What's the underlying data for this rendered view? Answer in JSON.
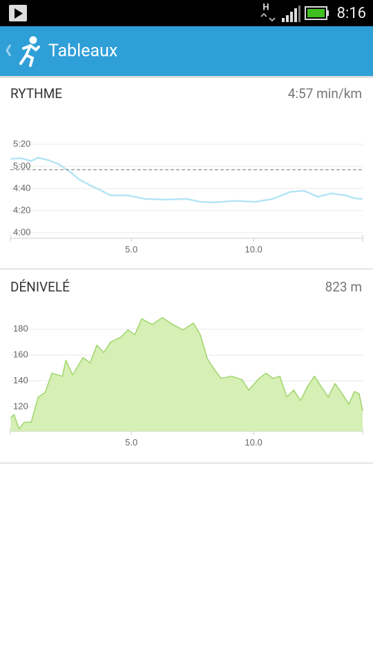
{
  "status_bar": {
    "network": "H",
    "time": "8:16"
  },
  "app_bar": {
    "title": "Tableaux"
  },
  "chart_data": [
    {
      "type": "line",
      "title": "RYTHME",
      "average": {
        "value": 297,
        "label": "4:57 min/km"
      },
      "x": [
        0.06,
        0.48,
        0.9,
        1.19,
        1.61,
        2.03,
        2.46,
        2.88,
        3.31,
        3.87,
        4.15,
        4.86,
        5.56,
        6.41,
        7.26,
        7.82,
        8.39,
        9.24,
        10.08,
        10.79,
        11.5,
        12.06,
        12.63,
        13.19,
        13.76,
        14.18,
        14.46
      ],
      "values": [
        306.9,
        307.5,
        305,
        308,
        305.6,
        302,
        295.6,
        288,
        283,
        277,
        273.8,
        273.8,
        270.6,
        270,
        270.6,
        268,
        267.5,
        268.8,
        268,
        270.6,
        277,
        278,
        272.5,
        275.6,
        273.8,
        271,
        270.6
      ],
      "color": "#b5e4f6",
      "xlim": [
        0.05,
        14.46
      ],
      "xticks": [
        {
          "value": 5,
          "label": "5.0"
        },
        {
          "value": 10,
          "label": "10.0"
        }
      ],
      "ylim": [
        235,
        320
      ],
      "yticks": [
        {
          "value": 320,
          "label": "5:20"
        },
        {
          "value": 300,
          "label": "5:00"
        },
        {
          "value": 280,
          "label": "4:40"
        },
        {
          "value": 260,
          "label": "4:20"
        },
        {
          "value": 240,
          "label": "4:00"
        }
      ],
      "grid": true
    },
    {
      "type": "area",
      "title": "DÉNIVELÉ",
      "summary": "823 m",
      "x": [
        0.06,
        0.2,
        0.4,
        0.62,
        0.9,
        1.19,
        1.47,
        1.75,
        2.18,
        2.32,
        2.6,
        3.02,
        3.31,
        3.59,
        3.87,
        4.15,
        4.58,
        4.86,
        5.14,
        5.42,
        5.85,
        6.27,
        6.69,
        7.12,
        7.54,
        7.82,
        8.11,
        8.39,
        8.67,
        9.1,
        9.52,
        9.8,
        10.23,
        10.51,
        10.79,
        11.07,
        11.36,
        11.64,
        11.92,
        12.2,
        12.49,
        12.77,
        13.05,
        13.33,
        13.62,
        13.9,
        14.12,
        14.32,
        14.46
      ],
      "values": [
        111.4,
        114,
        103,
        108,
        108,
        127.5,
        131,
        146,
        143.6,
        156,
        144.6,
        158,
        154,
        167.7,
        162,
        170,
        174,
        179.5,
        175.7,
        188,
        183.7,
        189,
        183.7,
        179.5,
        184.8,
        175.7,
        157,
        149,
        142,
        143.6,
        141,
        132.9,
        142,
        146,
        142,
        143.6,
        127.5,
        132.9,
        124.8,
        135.5,
        143.6,
        135.5,
        127.5,
        138,
        130,
        122,
        131.8,
        130,
        116.8
      ],
      "color": "#9fd56a",
      "area_color": "#d5efb5",
      "xlim": [
        0.05,
        14.46
      ],
      "xticks": [
        {
          "value": 5,
          "label": "5.0"
        },
        {
          "value": 10,
          "label": "10.0"
        }
      ],
      "ylim": [
        101,
        190
      ],
      "yticks": [
        120,
        140,
        160,
        180
      ],
      "grid": true
    }
  ]
}
